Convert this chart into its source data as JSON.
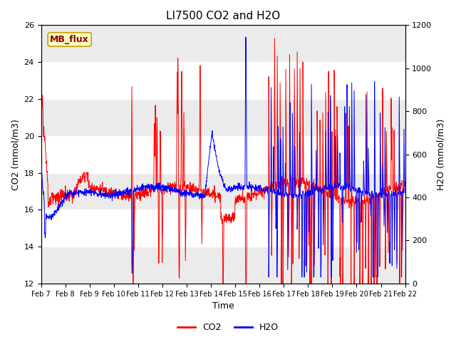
{
  "title": "LI7500 CO2 and H2O",
  "xlabel": "Time",
  "ylabel_left": "CO2 (mmol/m3)",
  "ylabel_right": "H2O (mmol/m3)",
  "ylim_left": [
    12,
    26
  ],
  "ylim_right": [
    0,
    1200
  ],
  "yticks_left": [
    12,
    14,
    16,
    18,
    20,
    22,
    24,
    26
  ],
  "yticks_right": [
    0,
    200,
    400,
    600,
    800,
    1000,
    1200
  ],
  "x_tick_labels": [
    "Feb 7",
    "Feb 8",
    "Feb 9",
    "Feb 10",
    "Feb 11",
    "Feb 12",
    "Feb 13",
    "Feb 14",
    "Feb 15",
    "Feb 16",
    "Feb 17",
    "Feb 18",
    "Feb 19",
    "Feb 20",
    "Feb 21",
    "Feb 22"
  ],
  "annotation_text": "MB_flux",
  "annotation_color": "#8B0000",
  "annotation_bg": "#FFFFC0",
  "annotation_border": "#C8A000",
  "co2_color": "#FF0000",
  "h2o_color": "#0000FF",
  "band_color_light": "#E8E8E8",
  "band_color_white": "#F8F8F8",
  "title_fontsize": 11,
  "axis_fontsize": 9,
  "tick_fontsize": 8,
  "legend_fontsize": 9
}
